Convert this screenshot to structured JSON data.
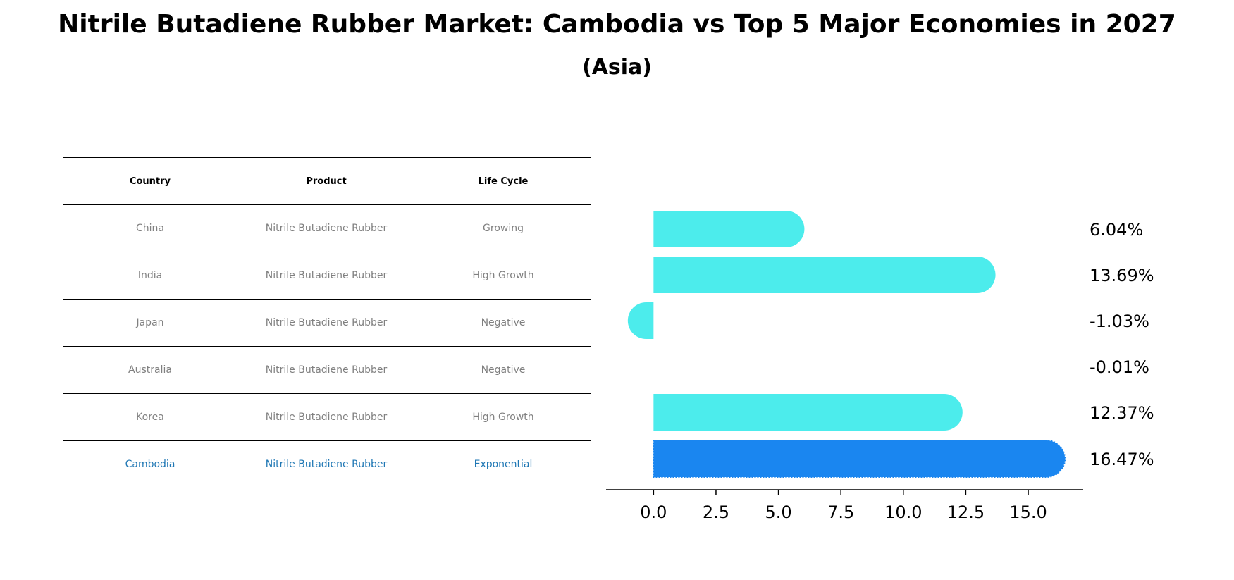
{
  "title": "Nitrile Butadiene Rubber Market: Cambodia vs Top 5 Major Economies in 2027",
  "subtitle": "(Asia)",
  "table": {
    "headers": [
      "Country",
      "Product",
      "Life Cycle"
    ],
    "rows": [
      [
        "China",
        "Nitrile Butadiene Rubber",
        "Growing"
      ],
      [
        "India",
        "Nitrile Butadiene Rubber",
        "High Growth"
      ],
      [
        "Japan",
        "Nitrile Butadiene Rubber",
        "Negative"
      ],
      [
        "Australia",
        "Nitrile Butadiene Rubber",
        "Negative"
      ],
      [
        "Korea",
        "Nitrile Butadiene Rubber",
        "High Growth"
      ],
      [
        "Cambodia",
        "Nitrile Butadiene Rubber",
        "Exponential"
      ]
    ],
    "highlight_row": 5
  },
  "chart_data": {
    "type": "bar",
    "orientation": "horizontal",
    "categories": [
      "China",
      "India",
      "Japan",
      "Australia",
      "Korea",
      "Cambodia"
    ],
    "values": [
      6.04,
      13.69,
      -1.03,
      -0.01,
      12.37,
      16.47
    ],
    "value_labels": [
      "6.04%",
      "13.69%",
      "-1.03%",
      "-0.01%",
      "12.37%",
      "16.47%"
    ],
    "xlim": [
      -1.9,
      17.2
    ],
    "xticks": [
      0.0,
      2.5,
      5.0,
      7.5,
      10.0,
      12.5,
      15.0
    ],
    "xtick_labels": [
      "0.0",
      "2.5",
      "5.0",
      "7.5",
      "10.0",
      "12.5",
      "15.0"
    ],
    "colors": {
      "default": "#4cecec",
      "highlight": "#1a86f0"
    },
    "highlight_index": 5,
    "grid": false
  }
}
